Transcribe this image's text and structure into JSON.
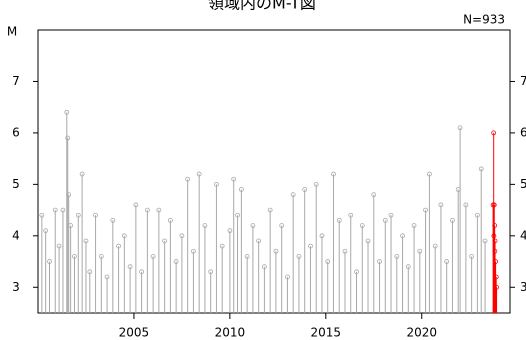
{
  "chart_data": {
    "type": "stem",
    "title": "領域内のM-T図",
    "annotation": "N=933",
    "ylabel": "M",
    "xlim": [
      2000,
      2024.6
    ],
    "ylim": [
      2.5,
      8.0
    ],
    "xticks": [
      2005,
      2010,
      2015,
      2020
    ],
    "yticks": [
      3,
      4,
      5,
      6,
      7
    ],
    "series": [
      {
        "color": "#a8a8a8",
        "x": [
          2000.2,
          2000.4,
          2000.6,
          2000.9,
          2001.1,
          2001.3,
          2001.5,
          2001.55,
          2001.6,
          2001.7,
          2001.9,
          2002.1,
          2002.3,
          2002.5,
          2002.7,
          2003.0,
          2003.3,
          2003.6,
          2003.9,
          2004.2,
          2004.5,
          2004.8,
          2005.1,
          2005.4,
          2005.7,
          2006.0,
          2006.3,
          2006.6,
          2006.9,
          2007.2,
          2007.5,
          2007.8,
          2008.1,
          2008.4,
          2008.7,
          2009.0,
          2009.3,
          2009.6,
          2010.0,
          2010.2,
          2010.4,
          2010.6,
          2010.9,
          2011.2,
          2011.5,
          2011.8,
          2012.1,
          2012.4,
          2012.7,
          2013.0,
          2013.3,
          2013.6,
          2013.9,
          2014.2,
          2014.5,
          2014.8,
          2015.1,
          2015.4,
          2015.7,
          2016.0,
          2016.3,
          2016.6,
          2016.9,
          2017.2,
          2017.5,
          2017.8,
          2018.1,
          2018.4,
          2018.7,
          2019.0,
          2019.3,
          2019.6,
          2019.9,
          2020.2,
          2020.4,
          2020.7,
          2021.0,
          2021.3,
          2021.6,
          2021.9,
          2022.0,
          2022.3,
          2022.6,
          2022.9,
          2023.1,
          2023.3
        ],
        "values": [
          4.4,
          4.1,
          3.5,
          4.5,
          3.8,
          4.5,
          6.4,
          5.9,
          4.8,
          4.2,
          3.6,
          4.4,
          5.2,
          3.9,
          3.3,
          4.4,
          3.6,
          3.2,
          4.3,
          3.8,
          4.0,
          3.4,
          4.6,
          3.3,
          4.5,
          3.6,
          4.5,
          3.9,
          4.3,
          3.5,
          4.0,
          5.1,
          3.7,
          5.2,
          4.2,
          3.3,
          5.0,
          3.8,
          4.1,
          5.1,
          4.4,
          4.9,
          3.6,
          4.2,
          3.9,
          3.4,
          4.5,
          3.7,
          4.2,
          3.2,
          4.8,
          3.6,
          4.9,
          3.8,
          5.0,
          4.0,
          3.5,
          5.2,
          4.3,
          3.7,
          4.4,
          3.3,
          4.2,
          3.9,
          4.8,
          3.5,
          4.3,
          4.4,
          3.6,
          4.0,
          3.4,
          4.2,
          3.7,
          4.5,
          5.2,
          3.8,
          4.6,
          3.5,
          4.3,
          4.9,
          6.1,
          4.6,
          3.6,
          4.4,
          5.3,
          3.9
        ]
      },
      {
        "color": "#ff0000",
        "x": [
          2023.72,
          2023.75,
          2023.76,
          2023.78,
          2023.8,
          2023.81,
          2023.82,
          2023.85,
          2023.88,
          2023.9
        ],
        "values": [
          4.6,
          6.0,
          4.0,
          4.6,
          4.2,
          3.7,
          3.9,
          3.5,
          3.2,
          3.0
        ]
      }
    ]
  }
}
